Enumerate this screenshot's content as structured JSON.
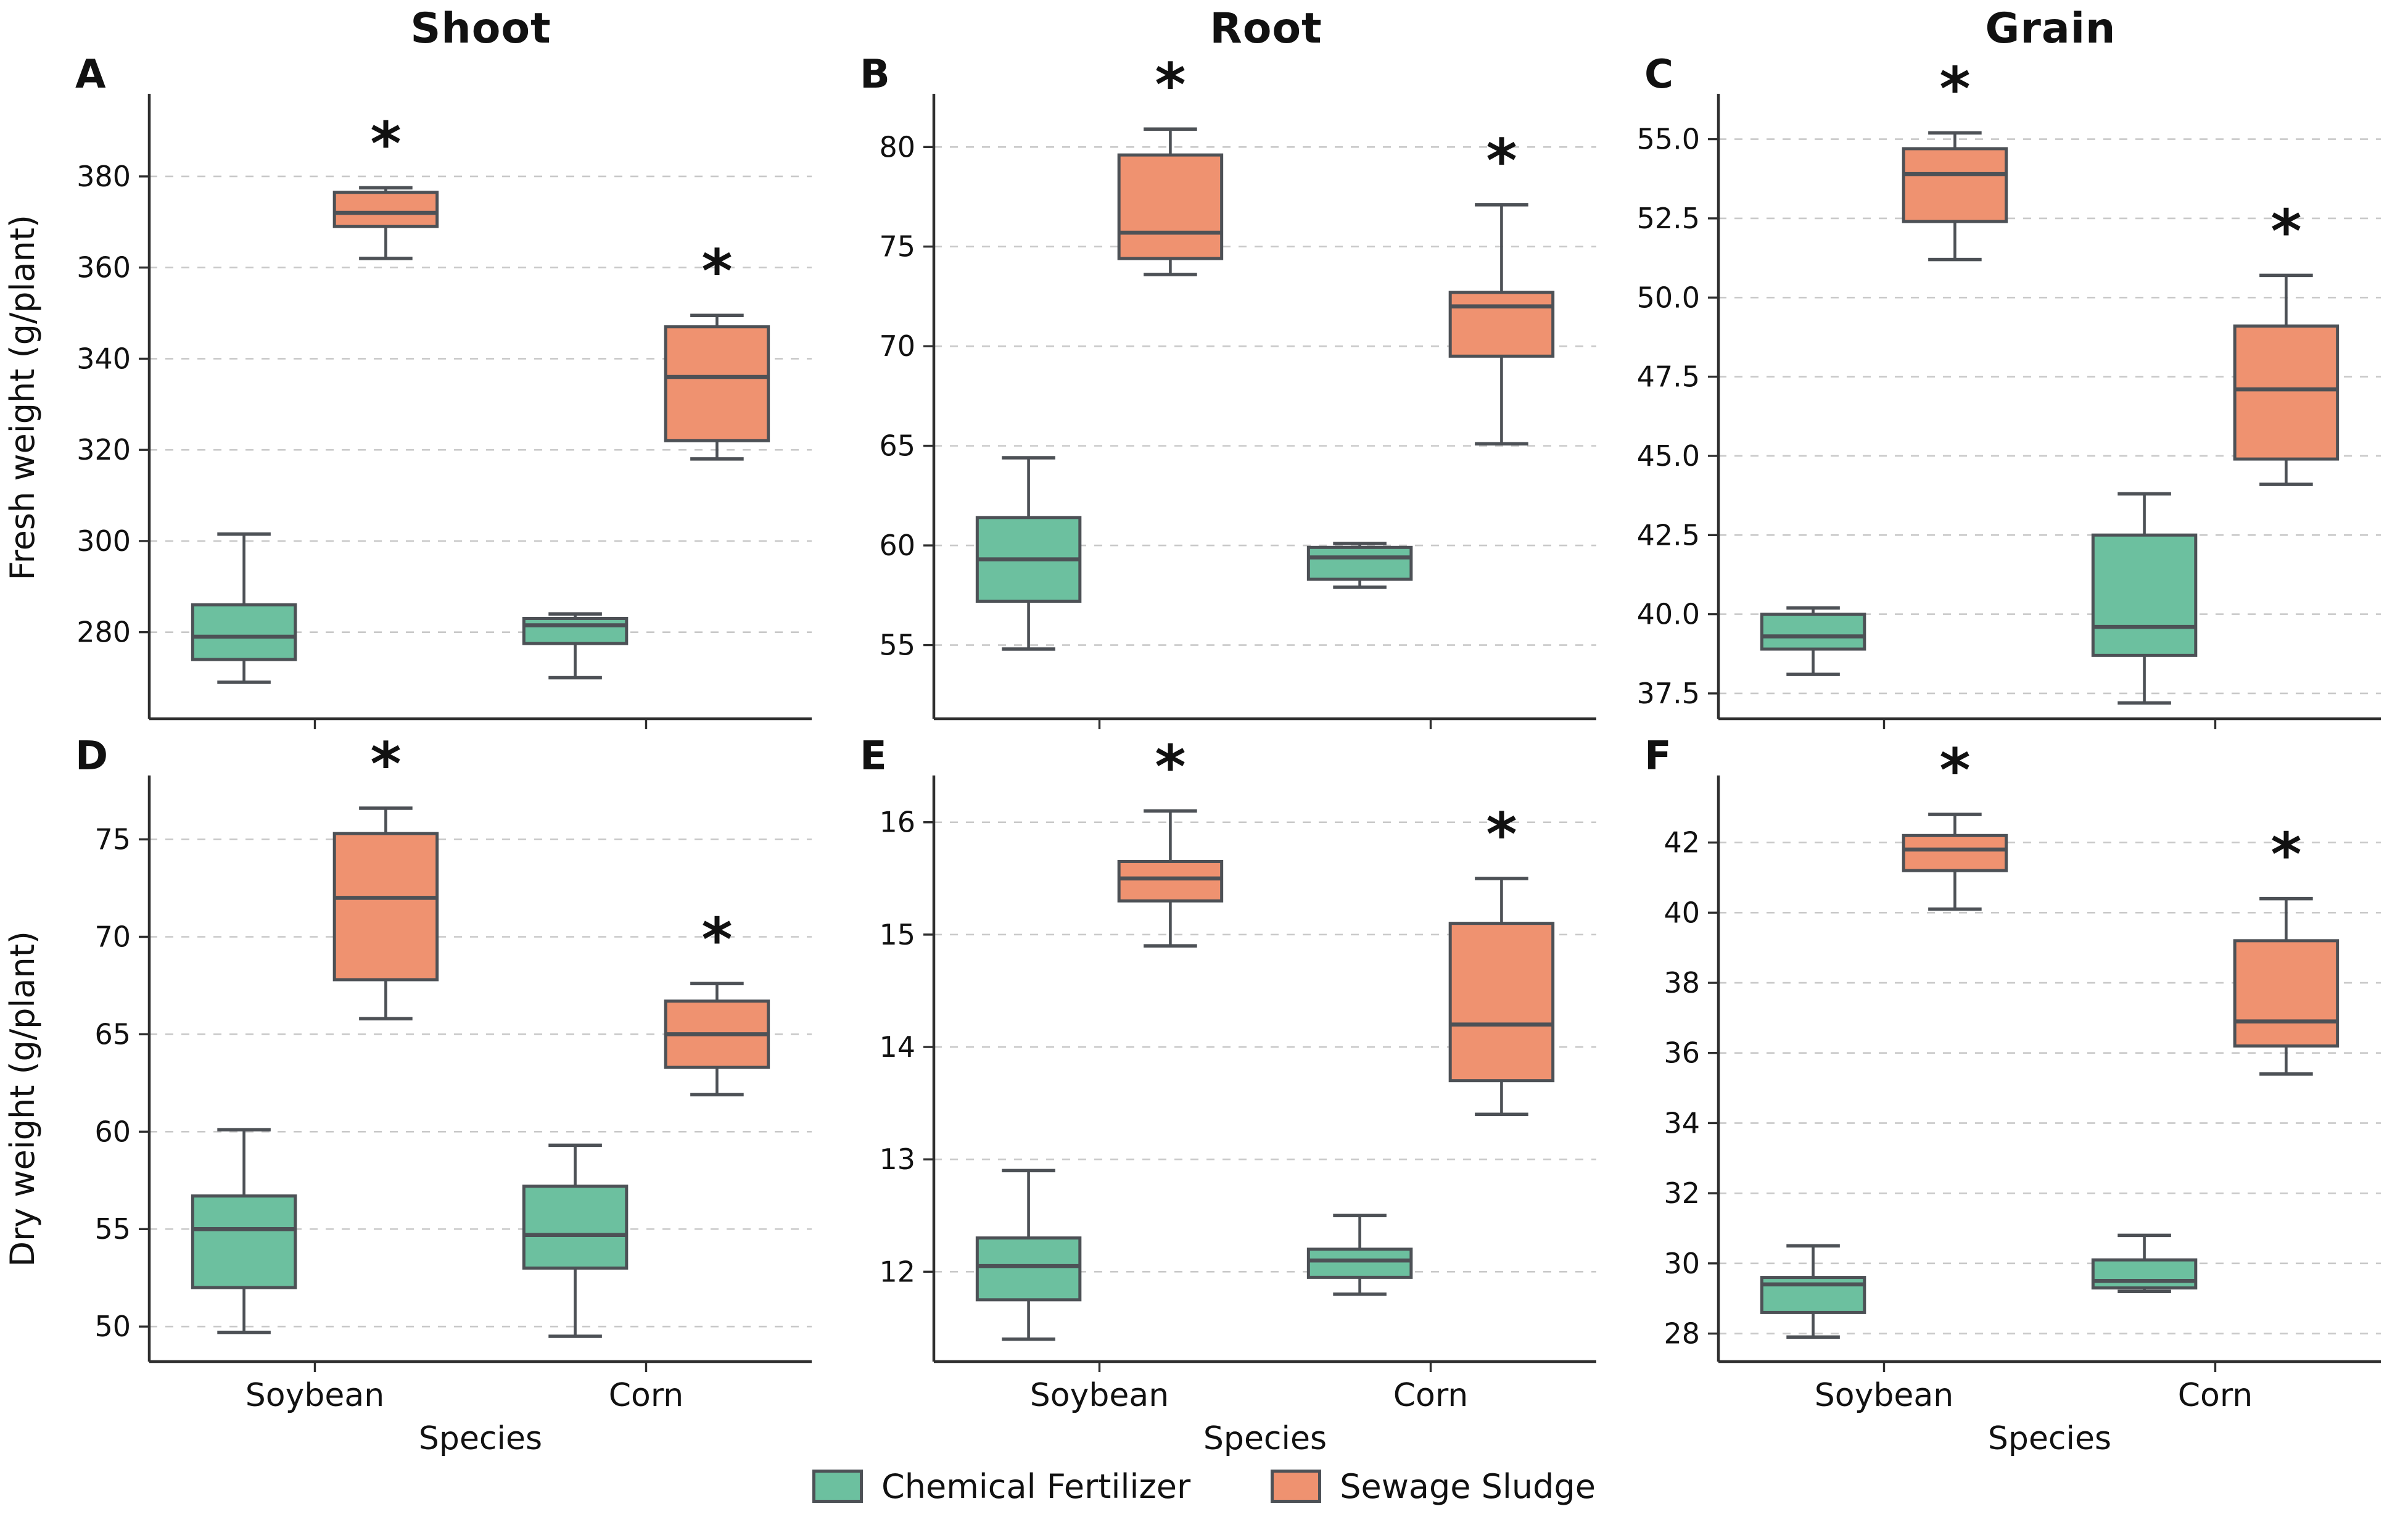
{
  "columns": [
    "Shoot",
    "Root",
    "Grain"
  ],
  "row_ylabels": [
    "Fresh weight (g/plant)",
    "Dry weight (g/plant)"
  ],
  "xlabel": "Species",
  "species": [
    "Soybean",
    "Corn"
  ],
  "sig_marker": "*",
  "legend": {
    "items": [
      {
        "label": "Chemical Fertilizer",
        "color": "#6cc09f"
      },
      {
        "label": "Sewage Sludge",
        "color": "#ef9270"
      }
    ]
  },
  "style": {
    "box_border": "#4d5156",
    "grid_color": "#c9c9c9",
    "spine_color": "#2f2f2f",
    "text_color": "#111111"
  },
  "chart_data": [
    {
      "panel": "A",
      "type": "box",
      "column": "Shoot",
      "ylabel": "Fresh weight (g/plant)",
      "ylim": [
        261,
        396.5
      ],
      "yticks": [
        280,
        300,
        320,
        340,
        360,
        380
      ],
      "ytick_labels": [
        "280",
        "300",
        "320",
        "340",
        "360",
        "380"
      ],
      "x_categories": [
        "Soybean",
        "Corn"
      ],
      "grid": true,
      "show_xticklabels": false,
      "series": [
        {
          "species": "Soybean",
          "treatment": "Chemical Fertilizer",
          "whislo": 269,
          "q1": 274,
          "med": 279,
          "q3": 286,
          "whishi": 301.5,
          "significant": false
        },
        {
          "species": "Soybean",
          "treatment": "Sewage Sludge",
          "whislo": 362,
          "q1": 369,
          "med": 372,
          "q3": 376.5,
          "whishi": 377.5,
          "significant": true
        },
        {
          "species": "Corn",
          "treatment": "Chemical Fertilizer",
          "whislo": 270,
          "q1": 277.5,
          "med": 281.5,
          "q3": 283,
          "whishi": 284,
          "significant": false
        },
        {
          "species": "Corn",
          "treatment": "Sewage Sludge",
          "whislo": 318,
          "q1": 322,
          "med": 336,
          "q3": 347,
          "whishi": 349.5,
          "significant": true
        }
      ]
    },
    {
      "panel": "B",
      "type": "box",
      "column": "Root",
      "ylabel": "Fresh weight (g/plant)",
      "ylim": [
        51.3,
        82.3
      ],
      "yticks": [
        55,
        60,
        65,
        70,
        75,
        80
      ],
      "ytick_labels": [
        "55",
        "60",
        "65",
        "70",
        "75",
        "80"
      ],
      "x_categories": [
        "Soybean",
        "Corn"
      ],
      "grid": true,
      "show_xticklabels": false,
      "series": [
        {
          "species": "Soybean",
          "treatment": "Chemical Fertilizer",
          "whislo": 54.8,
          "q1": 57.2,
          "med": 59.3,
          "q3": 61.4,
          "whishi": 64.4,
          "significant": false
        },
        {
          "species": "Soybean",
          "treatment": "Sewage Sludge",
          "whislo": 73.6,
          "q1": 74.4,
          "med": 75.7,
          "q3": 79.6,
          "whishi": 80.9,
          "significant": true
        },
        {
          "species": "Corn",
          "treatment": "Chemical Fertilizer",
          "whislo": 57.9,
          "q1": 58.3,
          "med": 59.4,
          "q3": 59.9,
          "whishi": 60.1,
          "significant": false
        },
        {
          "species": "Corn",
          "treatment": "Sewage Sludge",
          "whislo": 65.1,
          "q1": 69.5,
          "med": 72.0,
          "q3": 72.7,
          "whishi": 77.1,
          "significant": true
        }
      ]
    },
    {
      "panel": "C",
      "type": "box",
      "column": "Grain",
      "ylabel": "Fresh weight (g/plant)",
      "ylim": [
        36.7,
        56.2
      ],
      "yticks": [
        37.5,
        40.0,
        42.5,
        45.0,
        47.5,
        50.0,
        52.5,
        55.0
      ],
      "ytick_labels": [
        "37.5",
        "40.0",
        "42.5",
        "45.0",
        "47.5",
        "50.0",
        "52.5",
        "55.0"
      ],
      "x_categories": [
        "Soybean",
        "Corn"
      ],
      "grid": true,
      "show_xticklabels": false,
      "series": [
        {
          "species": "Soybean",
          "treatment": "Chemical Fertilizer",
          "whislo": 38.1,
          "q1": 38.9,
          "med": 39.3,
          "q3": 40.0,
          "whishi": 40.2,
          "significant": false
        },
        {
          "species": "Soybean",
          "treatment": "Sewage Sludge",
          "whislo": 51.2,
          "q1": 52.4,
          "med": 53.9,
          "q3": 54.7,
          "whishi": 55.2,
          "significant": true
        },
        {
          "species": "Corn",
          "treatment": "Chemical Fertilizer",
          "whislo": 37.2,
          "q1": 38.7,
          "med": 39.6,
          "q3": 42.5,
          "whishi": 43.8,
          "significant": false
        },
        {
          "species": "Corn",
          "treatment": "Sewage Sludge",
          "whislo": 44.1,
          "q1": 44.9,
          "med": 47.1,
          "q3": 49.1,
          "whishi": 50.7,
          "significant": true
        }
      ]
    },
    {
      "panel": "D",
      "type": "box",
      "column": "Shoot",
      "ylabel": "Dry weight (g/plant)",
      "ylim": [
        48.2,
        77.9
      ],
      "yticks": [
        50,
        55,
        60,
        65,
        70,
        75
      ],
      "ytick_labels": [
        "50",
        "55",
        "60",
        "65",
        "70",
        "75"
      ],
      "x_categories": [
        "Soybean",
        "Corn"
      ],
      "grid": true,
      "show_xticklabels": true,
      "series": [
        {
          "species": "Soybean",
          "treatment": "Chemical Fertilizer",
          "whislo": 49.7,
          "q1": 52.0,
          "med": 55.0,
          "q3": 56.7,
          "whishi": 60.1,
          "significant": false
        },
        {
          "species": "Soybean",
          "treatment": "Sewage Sludge",
          "whislo": 65.8,
          "q1": 67.8,
          "med": 72.0,
          "q3": 75.3,
          "whishi": 76.6,
          "significant": true
        },
        {
          "species": "Corn",
          "treatment": "Chemical Fertilizer",
          "whislo": 49.5,
          "q1": 53.0,
          "med": 54.7,
          "q3": 57.2,
          "whishi": 59.3,
          "significant": false
        },
        {
          "species": "Corn",
          "treatment": "Sewage Sludge",
          "whislo": 61.9,
          "q1": 63.3,
          "med": 65.0,
          "q3": 66.7,
          "whishi": 67.6,
          "significant": true
        }
      ]
    },
    {
      "panel": "E",
      "type": "box",
      "column": "Root",
      "ylabel": "Dry weight (g/plant)",
      "ylim": [
        11.2,
        16.35
      ],
      "yticks": [
        12,
        13,
        14,
        15,
        16
      ],
      "ytick_labels": [
        "12",
        "13",
        "14",
        "15",
        "16"
      ],
      "x_categories": [
        "Soybean",
        "Corn"
      ],
      "grid": true,
      "show_xticklabels": true,
      "series": [
        {
          "species": "Soybean",
          "treatment": "Chemical Fertilizer",
          "whislo": 11.4,
          "q1": 11.75,
          "med": 12.05,
          "q3": 12.3,
          "whishi": 12.9,
          "significant": false
        },
        {
          "species": "Soybean",
          "treatment": "Sewage Sludge",
          "whislo": 14.9,
          "q1": 15.3,
          "med": 15.5,
          "q3": 15.65,
          "whishi": 16.1,
          "significant": true
        },
        {
          "species": "Corn",
          "treatment": "Chemical Fertilizer",
          "whislo": 11.8,
          "q1": 11.95,
          "med": 12.1,
          "q3": 12.2,
          "whishi": 12.5,
          "significant": false
        },
        {
          "species": "Corn",
          "treatment": "Sewage Sludge",
          "whislo": 13.4,
          "q1": 13.7,
          "med": 14.2,
          "q3": 15.1,
          "whishi": 15.5,
          "significant": true
        }
      ]
    },
    {
      "panel": "F",
      "type": "box",
      "column": "Grain",
      "ylabel": "Dry weight (g/plant)",
      "ylim": [
        27.2,
        43.7
      ],
      "yticks": [
        28,
        30,
        32,
        34,
        36,
        38,
        40,
        42
      ],
      "ytick_labels": [
        "28",
        "30",
        "32",
        "34",
        "36",
        "38",
        "40",
        "42"
      ],
      "x_categories": [
        "Soybean",
        "Corn"
      ],
      "grid": true,
      "show_xticklabels": true,
      "series": [
        {
          "species": "Soybean",
          "treatment": "Chemical Fertilizer",
          "whislo": 27.9,
          "q1": 28.6,
          "med": 29.4,
          "q3": 29.6,
          "whishi": 30.5,
          "significant": false
        },
        {
          "species": "Soybean",
          "treatment": "Sewage Sludge",
          "whislo": 40.1,
          "q1": 41.2,
          "med": 41.8,
          "q3": 42.2,
          "whishi": 42.8,
          "significant": true
        },
        {
          "species": "Corn",
          "treatment": "Chemical Fertilizer",
          "whislo": 29.2,
          "q1": 29.3,
          "med": 29.5,
          "q3": 30.1,
          "whishi": 30.8,
          "significant": false
        },
        {
          "species": "Corn",
          "treatment": "Sewage Sludge",
          "whislo": 35.4,
          "q1": 36.2,
          "med": 36.9,
          "q3": 39.2,
          "whishi": 40.4,
          "significant": true
        }
      ]
    }
  ]
}
